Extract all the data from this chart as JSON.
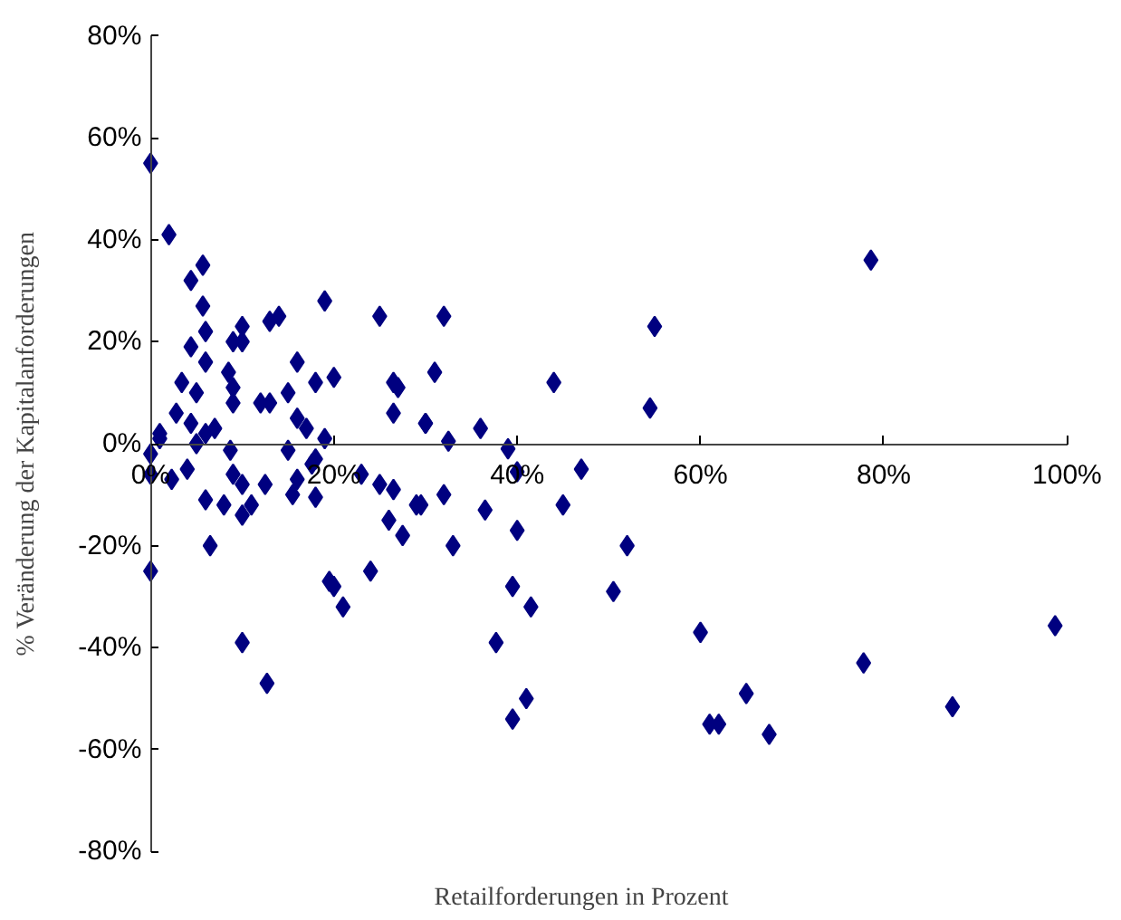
{
  "chart_data": {
    "type": "scatter",
    "xlabel": "Retailforderungen in Prozent",
    "ylabel": "% Veränderung der Kapitalanforderungen",
    "xlim": [
      0,
      100
    ],
    "ylim": [
      -80,
      80
    ],
    "xticks": [
      {
        "value": 0,
        "label": "0%"
      },
      {
        "value": 20,
        "label": "20%"
      },
      {
        "value": 40,
        "label": "40%"
      },
      {
        "value": 60,
        "label": "60%"
      },
      {
        "value": 80,
        "label": "80%"
      },
      {
        "value": 100,
        "label": "100%"
      }
    ],
    "yticks": [
      {
        "value": -80,
        "label": "-80%"
      },
      {
        "value": -60,
        "label": "-60%"
      },
      {
        "value": -40,
        "label": "-40%"
      },
      {
        "value": -20,
        "label": "-20%"
      },
      {
        "value": 0,
        "label": "0%"
      },
      {
        "value": 20,
        "label": "20%"
      },
      {
        "value": 40,
        "label": "40%"
      },
      {
        "value": 60,
        "label": "60%"
      },
      {
        "value": 80,
        "label": "80%"
      }
    ],
    "grid": false,
    "marker": "diamond",
    "series": [
      {
        "color": "#000080",
        "x": [
          0,
          2,
          5.7,
          4.4,
          5.7,
          6,
          4.4,
          6,
          19,
          14,
          13,
          10,
          9,
          10,
          25,
          16,
          18,
          20,
          8.5,
          9,
          3.4,
          5,
          15,
          12,
          13,
          9,
          26.5,
          27,
          26.5,
          2.8,
          4.4,
          16,
          17,
          7,
          6,
          5,
          1,
          19,
          30,
          0,
          8.7,
          15,
          0,
          4,
          2.3,
          6,
          8,
          10,
          11,
          17.6,
          18,
          9,
          10,
          12.5,
          16,
          15.5,
          18,
          23,
          25,
          26.5,
          26,
          27.5,
          29,
          6.5,
          0,
          19.5,
          20,
          24,
          21,
          10,
          12.7,
          32,
          55,
          31,
          44,
          54.5,
          30,
          36,
          32.5,
          39,
          40,
          47,
          45,
          29.5,
          32,
          36.5,
          33,
          40,
          52,
          39.5,
          41.5,
          50.5,
          37.7,
          60,
          41,
          39.5,
          61,
          62,
          65,
          67.5,
          78.6,
          77.8,
          87.5,
          98.7,
          1
        ],
        "values": [
          55,
          41,
          35,
          32,
          27,
          22,
          19,
          16,
          28,
          25,
          24,
          23,
          20,
          20,
          25,
          16,
          12,
          13,
          14,
          11,
          12,
          10,
          10,
          8,
          8,
          8,
          12,
          11,
          6,
          6,
          4,
          5,
          3,
          3,
          2,
          0,
          1,
          1,
          4,
          -2,
          -1.3,
          -1.3,
          -6,
          -5,
          -7,
          -11,
          -12,
          -14,
          -12,
          -4,
          -3,
          -6,
          -8,
          -8,
          -7,
          -10,
          -10.5,
          -6,
          -8,
          -9,
          -15,
          -18,
          -12,
          -20,
          -25,
          -27,
          -28,
          -25,
          -32,
          -39,
          -47,
          25,
          23,
          14,
          12,
          7,
          4,
          3,
          0.5,
          -1,
          -5.5,
          -5,
          -12,
          -12,
          -10,
          -13,
          -20,
          -17,
          -20,
          -28,
          -32,
          -29,
          -39,
          -37,
          -50,
          -54,
          -55,
          -55,
          -49,
          -57,
          36,
          -43,
          -51.6,
          -35.7,
          2
        ]
      }
    ]
  }
}
